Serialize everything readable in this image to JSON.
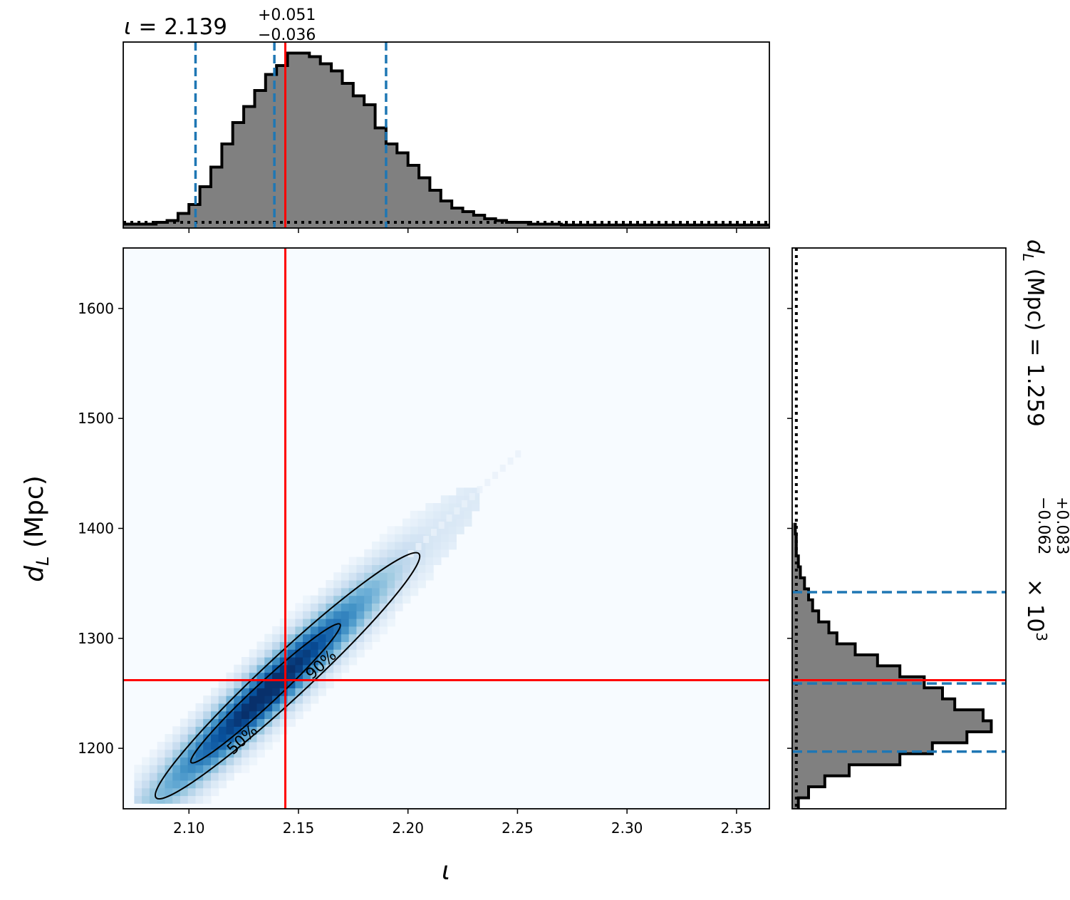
{
  "chart_data": [
    {
      "panel": "iota-marginal",
      "type": "histogram",
      "title": {
        "symbol": "ι",
        "eq": " = ",
        "value": "2.139",
        "plus": "+0.051",
        "minus": "−0.036"
      },
      "xlim": [
        2.07,
        2.365
      ],
      "x_ticks": [
        2.1,
        2.15,
        2.2,
        2.25,
        2.3,
        2.35
      ],
      "bin_width": 0.005,
      "bins_start": 2.07,
      "density": [
        0.01,
        0.01,
        0.01,
        0.02,
        0.03,
        0.07,
        0.12,
        0.22,
        0.33,
        0.46,
        0.58,
        0.67,
        0.76,
        0.85,
        0.9,
        0.97,
        0.97,
        0.95,
        0.91,
        0.87,
        0.8,
        0.73,
        0.68,
        0.55,
        0.46,
        0.41,
        0.34,
        0.27,
        0.2,
        0.14,
        0.1,
        0.08,
        0.06,
        0.04,
        0.03,
        0.02,
        0.02,
        0.01,
        0.01,
        0.01,
        0.005,
        0.005,
        0.005,
        0.005,
        0.005,
        0.005,
        0.005,
        0.005,
        0.005,
        0.005,
        0.005,
        0.005,
        0.005,
        0.005,
        0.005,
        0.005,
        0.005,
        0.005,
        0.005
      ],
      "prior_level": 0.02,
      "quantiles": [
        2.103,
        2.139,
        2.19
      ],
      "truth": 2.144
    },
    {
      "panel": "joint-2d",
      "type": "heatmap",
      "xlabel": "ι",
      "ylabel": "d_L (Mpc)",
      "xlim": [
        2.07,
        2.365
      ],
      "ylim": [
        1145,
        1655
      ],
      "x_ticks": [
        2.1,
        2.15,
        2.2,
        2.25,
        2.3,
        2.35
      ],
      "y_ticks": [
        1200,
        1300,
        1400,
        1500,
        1600
      ],
      "ridge": {
        "x0": 2.135,
        "y0": 1250,
        "slope": 1850,
        "sigma_along": 0.033,
        "sigma_across": 10
      },
      "contours": [
        {
          "label": "50%",
          "center": [
            2.135,
            1250
          ],
          "half_length": 0.034,
          "half_width": 9
        },
        {
          "label": "90%",
          "center": [
            2.145,
            1266
          ],
          "half_length": 0.06,
          "half_width": 18
        }
      ],
      "truth": {
        "x": 2.144,
        "y": 1262
      }
    },
    {
      "panel": "dl-marginal",
      "type": "histogram",
      "orientation": "horizontal",
      "title": {
        "symbol": "d",
        "sub": "L",
        "unit": " (Mpc) = ",
        "value": "1.259",
        "plus": "+0.083",
        "minus": "−0.062",
        "scale": "× 10",
        "exp": "3"
      },
      "ylim": [
        1145,
        1655
      ],
      "y_ticks": [
        1200,
        1300,
        1400,
        1500,
        1600
      ],
      "bin_width": 10,
      "bins_start": 1145,
      "density": [
        0.02,
        0.07,
        0.15,
        0.27,
        0.52,
        0.68,
        0.85,
        0.97,
        0.93,
        0.79,
        0.73,
        0.64,
        0.52,
        0.41,
        0.3,
        0.21,
        0.17,
        0.12,
        0.09,
        0.07,
        0.05,
        0.03,
        0.02,
        0.01,
        0.01,
        0.005
      ],
      "prior_level": 0.01,
      "quantiles": [
        1197,
        1259,
        1342
      ],
      "truth": 1262
    }
  ]
}
